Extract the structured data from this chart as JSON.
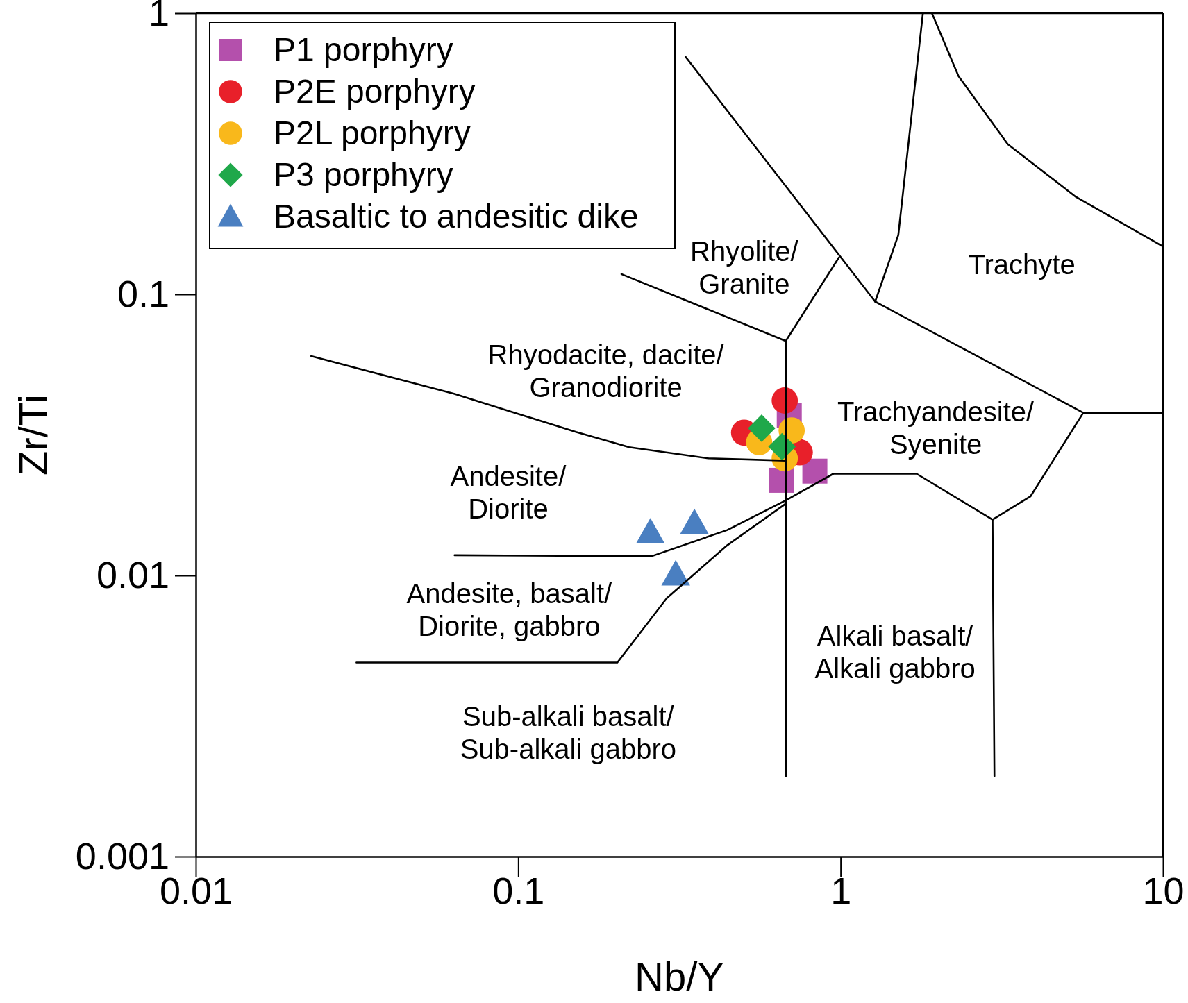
{
  "chart_data": {
    "type": "scatter",
    "xlabel": "Nb/Y",
    "ylabel": "Zr/Ti",
    "log": "xy",
    "legend": "top left",
    "xlim": [
      0.01,
      10
    ],
    "ylim": [
      0.001,
      1
    ],
    "xticks": [
      0.01,
      0.1,
      1,
      10
    ],
    "yticks": [
      0.001,
      0.01,
      0.1,
      1
    ],
    "series": [
      {
        "type": "line",
        "color": "#000000",
        "marker": "none",
        "x": [
          0.0228,
          0.0635,
          0.151,
          0.221,
          0.389,
          0.676
        ],
        "values": [
          0.0603,
          0.0442,
          0.0324,
          0.0286,
          0.0261,
          0.0256
        ]
      },
      {
        "type": "line",
        "color": "#000000",
        "marker": "none",
        "x": [
          0.676,
          0.676
        ],
        "values": [
          0.0682,
          0.00193
        ]
      },
      {
        "type": "line",
        "color": "#000000",
        "marker": "none",
        "x": [
          0.0635,
          0.259,
          0.445,
          0.676,
          0.95,
          1.72,
          2.96,
          3.0
        ],
        "values": [
          0.0118,
          0.0117,
          0.0145,
          0.0185,
          0.023,
          0.023,
          0.0158,
          0.00193
        ]
      },
      {
        "type": "line",
        "color": "#000000",
        "marker": "none",
        "x": [
          0.0315,
          0.203,
          0.289,
          0.445,
          0.676
        ],
        "values": [
          0.0049,
          0.0049,
          0.0083,
          0.0128,
          0.018
        ]
      },
      {
        "type": "line",
        "color": "#000000",
        "marker": "none",
        "x": [
          0.209,
          0.676,
          0.987
        ],
        "values": [
          0.118,
          0.0682,
          0.135
        ]
      },
      {
        "type": "line",
        "color": "#000000",
        "marker": "none",
        "x": [
          0.331,
          1.28,
          5.66,
          10
        ],
        "values": [
          0.698,
          0.0942,
          0.0379,
          0.0379
        ]
      },
      {
        "type": "line",
        "color": "#000000",
        "marker": "none",
        "x": [
          5.66,
          3.88,
          2.96
        ],
        "values": [
          0.0379,
          0.0191,
          0.0158
        ]
      },
      {
        "type": "line",
        "color": "#000000",
        "marker": "none",
        "x": [
          1.8,
          1.51,
          1.28
        ],
        "values": [
          1,
          0.1625,
          0.0942
        ]
      },
      {
        "type": "line",
        "color": "#000000",
        "marker": "none",
        "x": [
          1.92,
          2.32,
          3.3,
          5.37,
          10
        ],
        "values": [
          1,
          0.598,
          0.342,
          0.222,
          0.148
        ]
      },
      {
        "name": "P1 porphyry",
        "color": "#b450ac",
        "marker": "square",
        "x": [
          0.693,
          0.655,
          0.832
        ],
        "values": [
          0.0371,
          0.0218,
          0.0235
        ]
      },
      {
        "name": "P2E porphyry",
        "color": "#e8202a",
        "marker": "circle",
        "x": [
          0.671,
          0.502,
          0.747
        ],
        "values": [
          0.0419,
          0.0322,
          0.0274
        ]
      },
      {
        "name": "P2L porphyry",
        "color": "#f9b81b",
        "marker": "circle",
        "x": [
          0.559,
          0.705,
          0.671
        ],
        "values": [
          0.0298,
          0.0328,
          0.0261
        ]
      },
      {
        "name": "P3 porphyry",
        "color": "#1fa84a",
        "marker": "diamond",
        "x": [
          0.569,
          0.658
        ],
        "values": [
          0.0334,
          0.0287
        ]
      },
      {
        "name": "Basaltic to andesitic dike",
        "color": "#4a7fc1",
        "marker": "triangle",
        "x": [
          0.257,
          0.352,
          0.308
        ],
        "values": [
          0.01424,
          0.01537,
          0.0101
        ]
      }
    ],
    "annotations": [
      "Rhyolite/\nGranite",
      "Trachyte",
      "Rhyodacite, dacite/\nGranodiorite",
      "Trachyandesite/\nSyenite",
      "Andesite/\nDiorite",
      "Andesite, basalt/\nDiorite, gabbro",
      "Alkali basalt/\nAlkali gabbro",
      "Sub-alkali basalt/\nSub-alkali gabbro"
    ]
  }
}
